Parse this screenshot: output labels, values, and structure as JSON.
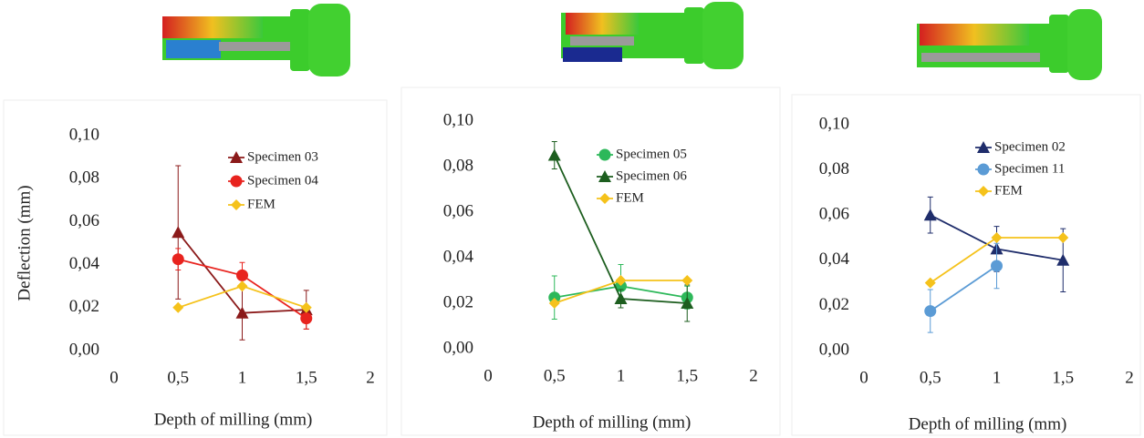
{
  "chart_data": [
    {
      "type": "line",
      "y_label": "Deflection (mm)",
      "x_label": "Depth of milling (mm)",
      "x": [
        0.5,
        1,
        1.5
      ],
      "xlim": [
        0,
        2
      ],
      "ylim": [
        0,
        0.1
      ],
      "xticks": [
        0,
        {
          "value": 0.5,
          "label": "0,5"
        },
        1,
        {
          "value": 1.5,
          "label": "1,5"
        },
        2
      ],
      "yticks": [
        {
          "value": 0,
          "label": "0,00"
        },
        {
          "value": 0.02,
          "label": "0,02"
        },
        {
          "value": 0.04,
          "label": "0,04"
        },
        {
          "value": 0.06,
          "label": "0,06"
        },
        {
          "value": 0.08,
          "label": "0,08"
        },
        {
          "value": 0.1,
          "label": "0,10"
        }
      ],
      "legend": "upper right",
      "series": [
        {
          "name": "Specimen 03",
          "color": "#8b1a1a",
          "marker": "triangle",
          "values": [
            0.055,
            0.0175,
            0.019
          ],
          "errors": [
            0.031,
            0.0125,
            0.009
          ]
        },
        {
          "name": "Specimen 04",
          "color": "#e8231e",
          "marker": "circle",
          "values": [
            0.0425,
            0.035,
            0.015
          ],
          "errors": [
            0.005,
            0.006,
            0.005
          ]
        },
        {
          "name": "FEM",
          "color": "#f5c21b",
          "marker": "diamond",
          "values": [
            0.02,
            0.03,
            0.02
          ]
        }
      ]
    },
    {
      "type": "line",
      "x_label": "Depth of milling (mm)",
      "x": [
        0.5,
        1,
        1.5
      ],
      "xlim": [
        0,
        2
      ],
      "ylim": [
        0,
        0.1
      ],
      "xticks": [
        0,
        {
          "value": 0.5,
          "label": "0,5"
        },
        1,
        {
          "value": 1.5,
          "label": "1,5"
        },
        2
      ],
      "yticks": [
        {
          "value": 0,
          "label": "0,00"
        },
        {
          "value": 0.02,
          "label": "0,02"
        },
        {
          "value": 0.04,
          "label": "0,04"
        },
        {
          "value": 0.06,
          "label": "0,06"
        },
        {
          "value": 0.08,
          "label": "0,08"
        },
        {
          "value": 0.1,
          "label": "0,10"
        }
      ],
      "legend": "upper right",
      "series": [
        {
          "name": "Specimen 05",
          "color": "#2db85a",
          "marker": "circle",
          "values": [
            0.0225,
            0.0275,
            0.0225
          ],
          "errors": [
            0.0095,
            0.0095,
            0.005
          ]
        },
        {
          "name": "Specimen 06",
          "color": "#1d5e1f",
          "marker": "triangle",
          "values": [
            0.085,
            0.022,
            0.02
          ],
          "errors": [
            0.006,
            0.004,
            0.008
          ]
        },
        {
          "name": "FEM",
          "color": "#f5c21b",
          "marker": "diamond",
          "values": [
            0.02,
            0.03,
            0.03
          ]
        }
      ]
    },
    {
      "type": "line",
      "x_label": "Depth of milling (mm)",
      "x": [
        0.5,
        1,
        1.5
      ],
      "xlim": [
        0,
        2
      ],
      "ylim": [
        0,
        0.1
      ],
      "xticks": [
        0,
        {
          "value": 0.5,
          "label": "0,5"
        },
        1,
        {
          "value": 1.5,
          "label": "1,5"
        },
        2
      ],
      "yticks": [
        {
          "value": 0,
          "label": "0,00"
        },
        {
          "value": 0.02,
          "label": "0,02"
        },
        {
          "value": 0.04,
          "label": "0,04"
        },
        {
          "value": 0.06,
          "label": "0,06"
        },
        {
          "value": 0.08,
          "label": "0,08"
        },
        {
          "value": 0.1,
          "label": "0,10"
        }
      ],
      "legend": "upper right",
      "series": [
        {
          "name": "Specimen 02",
          "color": "#1f2d6b",
          "marker": "triangle",
          "values": [
            0.06,
            0.045,
            0.04
          ],
          "errors": [
            0.008,
            0.01,
            0.014
          ]
        },
        {
          "name": "Specimen 11",
          "color": "#5b9bd5",
          "marker": "circle",
          "values": [
            0.0175,
            0.0375,
            null
          ],
          "errors": [
            0.0095,
            0.01,
            null
          ]
        },
        {
          "name": "FEM",
          "color": "#f5c21b",
          "marker": "diamond",
          "values": [
            0.03,
            0.05,
            0.05
          ]
        }
      ]
    }
  ]
}
